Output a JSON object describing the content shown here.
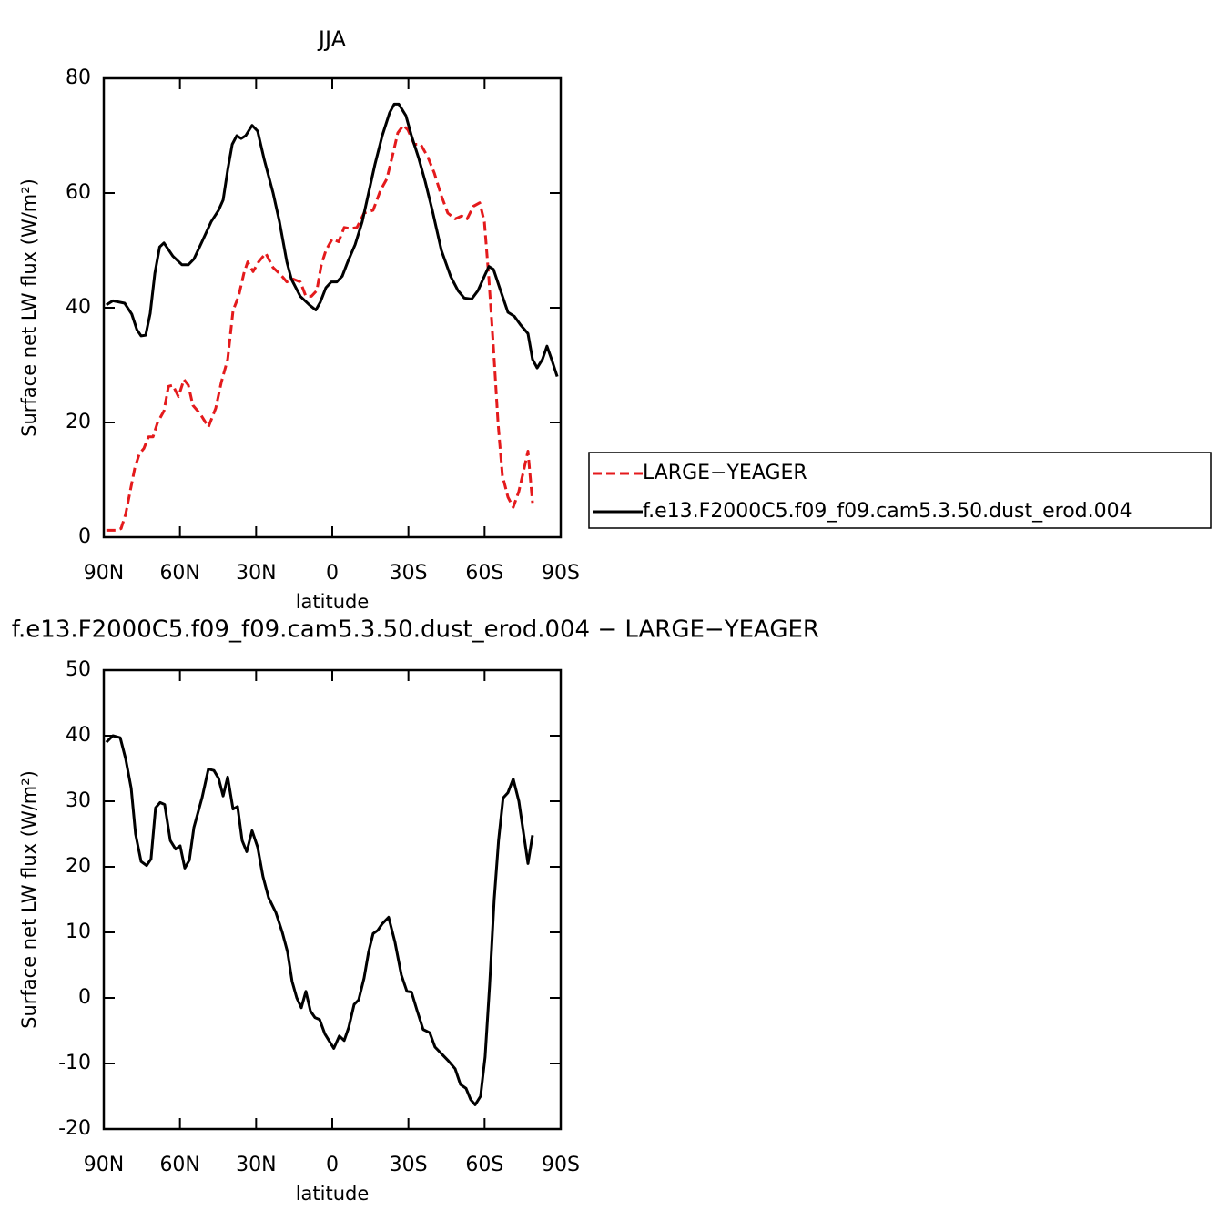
{
  "chart_data": [
    {
      "type": "line",
      "title": "JJA",
      "xlabel": "latitude",
      "ylabel": "Surface net LW flux (W/m²)",
      "xlim": [
        90,
        -90
      ],
      "xticks": [
        {
          "value": 90,
          "label": "90N"
        },
        {
          "value": 60,
          "label": "60N"
        },
        {
          "value": 30,
          "label": "30N"
        },
        0,
        {
          "value": -30,
          "label": "30S"
        },
        {
          "value": -60,
          "label": "60S"
        },
        {
          "value": -90,
          "label": "90S"
        }
      ],
      "ylim": [
        0,
        80
      ],
      "yticks": [
        0,
        20,
        40,
        60,
        80
      ],
      "legend": "right",
      "series": [
        {
          "name": "LARGE−YEAGER",
          "color": "#e41a1c",
          "dashed": true,
          "x": [
            89,
            85,
            83.2,
            81.4,
            79.6,
            77.8,
            76,
            74.2,
            72.4,
            70.6,
            68.8,
            66.3,
            64.5,
            62.8,
            60.6,
            58.4,
            56.7,
            54.9,
            52,
            48.8,
            45.9,
            43.7,
            41.2,
            39.1,
            36.9,
            34.8,
            33.3,
            31.2,
            29,
            26.2,
            23.3,
            20.4,
            17.9,
            15.4,
            12.6,
            10.4,
            8.2,
            6.1,
            4.3,
            2.5,
            0,
            -2.5,
            -4.7,
            -7.2,
            -9.7,
            -12.5,
            -16.1,
            -19,
            -21.5,
            -24,
            -25.8,
            -28,
            -29.8,
            -32.3,
            -34.8,
            -37.6,
            -40.2,
            -43,
            -45.5,
            -48.4,
            -50.9,
            -53.1,
            -55.6,
            -58.1,
            -59.9,
            -61.7,
            -63.5,
            -65.3,
            -67,
            -69.2,
            -71.3,
            -73.5,
            -75.6,
            -77.1,
            -78.9
          ],
          "values": [
            1.2,
            1.2,
            1.5,
            4,
            8,
            12,
            14.5,
            15.5,
            17.5,
            17.5,
            20,
            22,
            26.3,
            26.5,
            24.5,
            27.5,
            26.5,
            23,
            21.5,
            19.2,
            22.5,
            27,
            31,
            39.5,
            42,
            46,
            48,
            46.3,
            48,
            49.5,
            47,
            45.8,
            44.5,
            45,
            44.5,
            42,
            42,
            43,
            47.5,
            50,
            52,
            51.5,
            54,
            53.8,
            54,
            56.5,
            57,
            60.5,
            62.5,
            67,
            70.5,
            71.8,
            71,
            68.5,
            68.5,
            66.3,
            63.5,
            59.5,
            56.5,
            55.5,
            56,
            55.5,
            57.7,
            58.3,
            55,
            45,
            33,
            20,
            10.8,
            7,
            5.2,
            8,
            12,
            15,
            6
          ]
        },
        {
          "name": "f.e13.F2000C5.f09_f09.cam5.3.50.dust_erod.004",
          "color": "#000000",
          "dashed": false,
          "x": [
            89,
            86.4,
            81.8,
            79,
            77,
            75.3,
            73.5,
            71.7,
            69.9,
            68,
            66.3,
            62.8,
            59.2,
            56.7,
            54.5,
            51.3,
            47.7,
            44.8,
            43,
            41.2,
            39.4,
            37.6,
            35.9,
            34.1,
            31.6,
            29.4,
            26.9,
            23.3,
            20.8,
            17.9,
            16.1,
            12.6,
            9,
            6.5,
            4.7,
            2.5,
            0.4,
            -1.8,
            -3.9,
            -6.1,
            -9,
            -11.8,
            -14.3,
            -16.8,
            -19.7,
            -22.6,
            -24.4,
            -26.2,
            -29,
            -31.2,
            -34.1,
            -36.6,
            -39.4,
            -43,
            -46.6,
            -49.5,
            -52,
            -54.9,
            -57.4,
            -59.9,
            -61.7,
            -63.5,
            -66.3,
            -69.2,
            -71.7,
            -74.2,
            -77.1,
            -78.9,
            -80.7,
            -82.8,
            -84.6,
            -86.4,
            -88.6
          ],
          "values": [
            40.5,
            41.2,
            40.8,
            38.9,
            36.2,
            35.1,
            35.2,
            39,
            46,
            50.6,
            51.3,
            49,
            47.5,
            47.5,
            48.5,
            51.5,
            55,
            57,
            58.8,
            64,
            68.5,
            70,
            69.5,
            70,
            71.8,
            70.8,
            66,
            60,
            55,
            48,
            45,
            42,
            40.5,
            39.6,
            41,
            43.5,
            44.5,
            44.5,
            45.5,
            48,
            51,
            55,
            60,
            65,
            70,
            74,
            75.5,
            75.5,
            73.5,
            70,
            66,
            62,
            57,
            50,
            45.5,
            43,
            41.7,
            41.5,
            43,
            45.5,
            47.2,
            46.7,
            43,
            39.2,
            38.5,
            37,
            35.5,
            31,
            29.5,
            31,
            33.3,
            31,
            28
          ]
        }
      ]
    },
    {
      "type": "line",
      "title": "f.e13.F2000C5.f09_f09.cam5.3.50.dust_erod.004 − LARGE−YEAGER",
      "xlabel": "latitude",
      "ylabel": "Surface net LW flux (W/m²)",
      "xlim": [
        90,
        -90
      ],
      "xticks": [
        {
          "value": 90,
          "label": "90N"
        },
        {
          "value": 60,
          "label": "60N"
        },
        {
          "value": 30,
          "label": "30N"
        },
        0,
        {
          "value": -30,
          "label": "30S"
        },
        {
          "value": -60,
          "label": "60S"
        },
        {
          "value": -90,
          "label": "90S"
        }
      ],
      "ylim": [
        -20,
        50
      ],
      "yticks": [
        -20,
        -10,
        0,
        10,
        20,
        30,
        40,
        50
      ],
      "color": "#000000",
      "x": [
        89,
        86.4,
        83.5,
        81.4,
        79.2,
        77.5,
        75.3,
        73.1,
        71.4,
        69.6,
        67.8,
        66,
        63.8,
        61.7,
        59.9,
        58.1,
        56.3,
        54.5,
        51.3,
        48.8,
        46.6,
        44.8,
        43,
        41.2,
        39.1,
        37.3,
        35.5,
        33.7,
        31.6,
        29.4,
        27.3,
        25.1,
        22.2,
        19.7,
        17.6,
        15.8,
        14,
        12.2,
        10.4,
        8.6,
        6.8,
        5,
        2.9,
        -0.6,
        -2.8,
        -4.7,
        -6.5,
        -8.6,
        -10.4,
        -12.5,
        -14.3,
        -16.1,
        -17.9,
        -19.7,
        -22.2,
        -24.7,
        -27.2,
        -29.4,
        -31.2,
        -33.3,
        -35.8,
        -38.4,
        -40.5,
        -43,
        -45.5,
        -48.4,
        -50.5,
        -52.7,
        -54.5,
        -56.3,
        -58.4,
        -60.2,
        -62,
        -63.8,
        -65.5,
        -67.3,
        -69.2,
        -71.3,
        -73.5,
        -75.6,
        -77.1,
        -78.9
      ],
      "values": [
        39,
        40,
        39.7,
        36.5,
        32,
        25,
        20.8,
        20.2,
        21.2,
        29,
        29.8,
        29.5,
        24,
        22.7,
        23.2,
        19.8,
        21,
        26,
        30.5,
        34.9,
        34.7,
        33.5,
        30.8,
        33.7,
        28.8,
        29.2,
        24,
        22.3,
        25.5,
        23,
        18.5,
        15.3,
        13,
        10,
        7,
        2.5,
        0,
        -1.5,
        1,
        -2,
        -3,
        -3.3,
        -5.5,
        -7.7,
        -5.8,
        -6.5,
        -4.5,
        -1,
        -0.3,
        3,
        7,
        9.8,
        10.3,
        11.3,
        12.3,
        8.5,
        3.5,
        1,
        0.9,
        -1.8,
        -4.8,
        -5.3,
        -7.5,
        -8.5,
        -9.5,
        -10.8,
        -13.2,
        -13.8,
        -15.5,
        -16.3,
        -15,
        -9,
        2,
        15,
        24,
        30.5,
        31.3,
        33.4,
        30,
        24.5,
        20.5,
        24.8
      ]
    }
  ]
}
